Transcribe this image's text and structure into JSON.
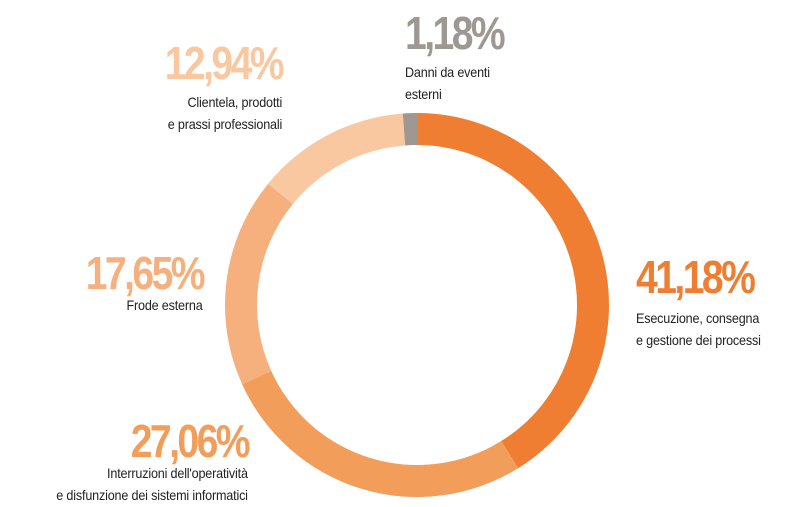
{
  "chart_data": {
    "type": "donut",
    "categories": [
      "Esecuzione, consegna\ne gestione dei processi",
      "Interruzioni dell'operatività\ne disfunzione dei sistemi informatici",
      "Frode esterna",
      "Clientela, prodotti\ne prassi professionali",
      "Danni da eventi\nesterni"
    ],
    "values": [
      41.18,
      27.06,
      17.65,
      12.94,
      1.18
    ],
    "value_labels": [
      "41,18%",
      "27,06%",
      "17,65%",
      "12,94%",
      "1,18%"
    ],
    "colors": [
      "#ef7e33",
      "#f39d5b",
      "#f5b07d",
      "#f9c8a1",
      "#9e9893"
    ]
  }
}
